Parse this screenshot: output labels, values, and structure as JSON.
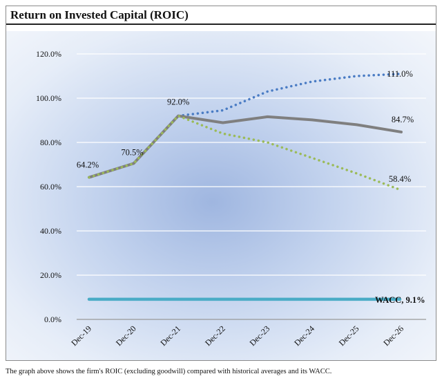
{
  "header": {
    "title": "Return on Invested Capital (ROIC)"
  },
  "caption": "The graph above shows the firm's ROIC (excluding goodwill) compared with historical averages and its WACC.",
  "chart_data": {
    "type": "line",
    "title": "Return on Invested Capital (ROIC)",
    "categories": [
      "Dec-19",
      "Dec-20",
      "Dec-21",
      "Dec-22",
      "Dec-23",
      "Dec-24",
      "Dec-25",
      "Dec-26"
    ],
    "ylim": [
      0,
      120
    ],
    "yticks": [
      "0.0%",
      "20.0%",
      "40.0%",
      "60.0%",
      "80.0%",
      "100.0%",
      "120.0%"
    ],
    "ytick_values": [
      0,
      20,
      40,
      60,
      80,
      100,
      120
    ],
    "grid": true,
    "series": [
      {
        "values": [
          64.2,
          70.5,
          92.0,
          88.9,
          91.6,
          90.2,
          88.0,
          84.7
        ],
        "color": "#7f7f7f",
        "style": "solid"
      },
      {
        "values": [
          null,
          null,
          92.0,
          94.5,
          103.0,
          107.5,
          110.0,
          111.0
        ],
        "color": "#4a7cc4",
        "style": "dotted"
      },
      {
        "values": [
          64.2,
          70.5,
          92.0,
          84.0,
          80.0,
          73.0,
          66.0,
          58.4
        ],
        "color": "#9bbb59",
        "style": "dotted"
      },
      {
        "values": [
          9.1,
          9.1,
          9.1,
          9.1,
          9.1,
          9.1,
          9.1,
          9.1
        ],
        "color": "#4bacc6",
        "style": "solid"
      }
    ],
    "data_labels": [
      {
        "text": "64.2%",
        "index": 0,
        "value": 64.2
      },
      {
        "text": "70.5%",
        "index": 1,
        "value": 70.5
      },
      {
        "text": "92.0%",
        "index": 2,
        "value": 92.0
      },
      {
        "text": "111.0%",
        "index": 7,
        "value": 111.0
      },
      {
        "text": "84.7%",
        "index": 7,
        "value": 84.7
      },
      {
        "text": "58.4%",
        "index": 7,
        "value": 58.4
      }
    ],
    "wacc_label": "WACC, 9.1%"
  }
}
